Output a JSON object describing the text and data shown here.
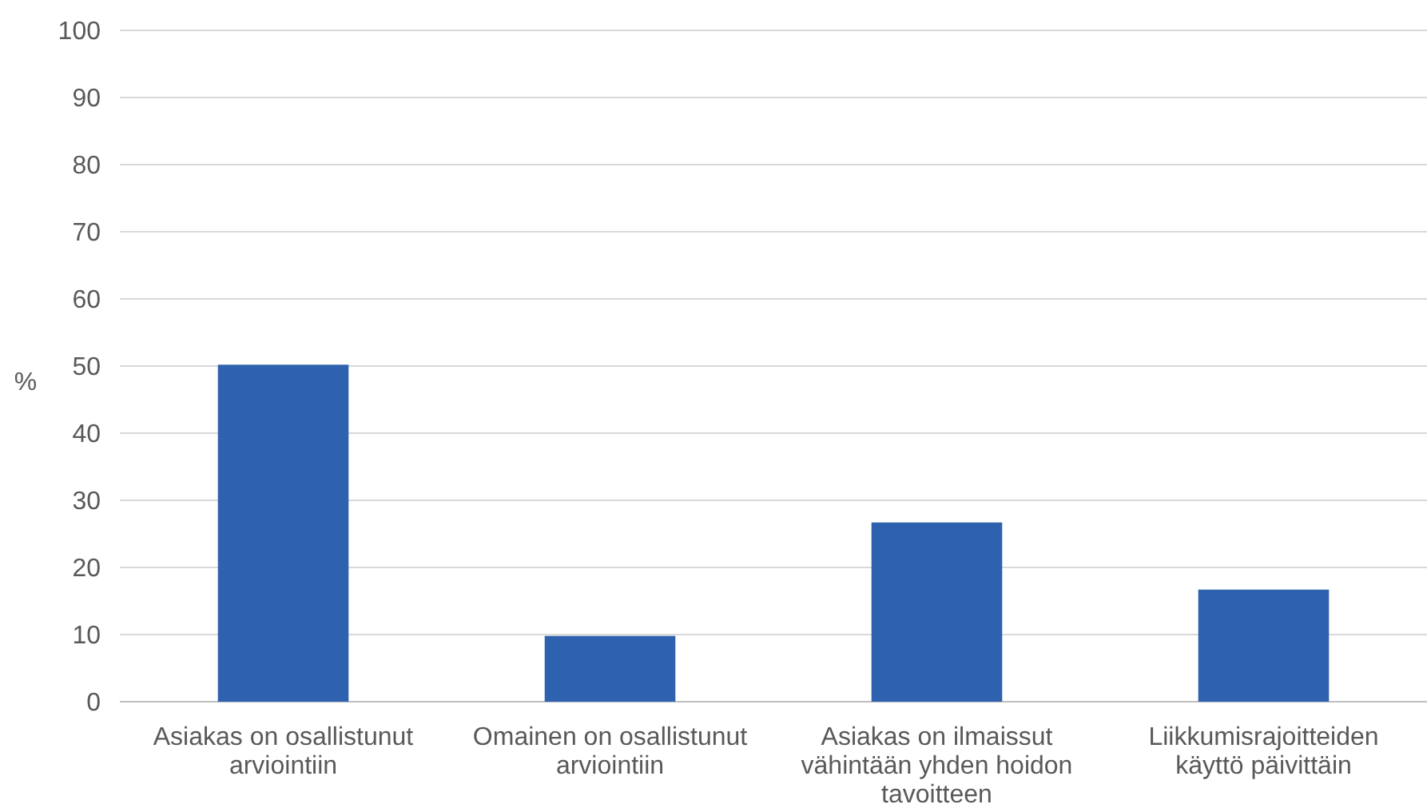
{
  "chart_data": {
    "type": "bar",
    "ylabel": "%",
    "categories": [
      "Asiakas on osallistunut arviointiin",
      "Omainen on osallistunut arviointiin",
      "Asiakas on ilmaissut vähintään yhden hoidon tavoitteen",
      "Liikkumisrajoitteiden käyttö päivittäin"
    ],
    "values": [
      50.2,
      9.8,
      26.7,
      16.7
    ],
    "color": "#2f62ae",
    "ylim": [
      0,
      100
    ],
    "yticks": [
      0,
      10,
      20,
      30,
      40,
      50,
      60,
      70,
      80,
      90,
      100
    ],
    "grid": "y"
  }
}
